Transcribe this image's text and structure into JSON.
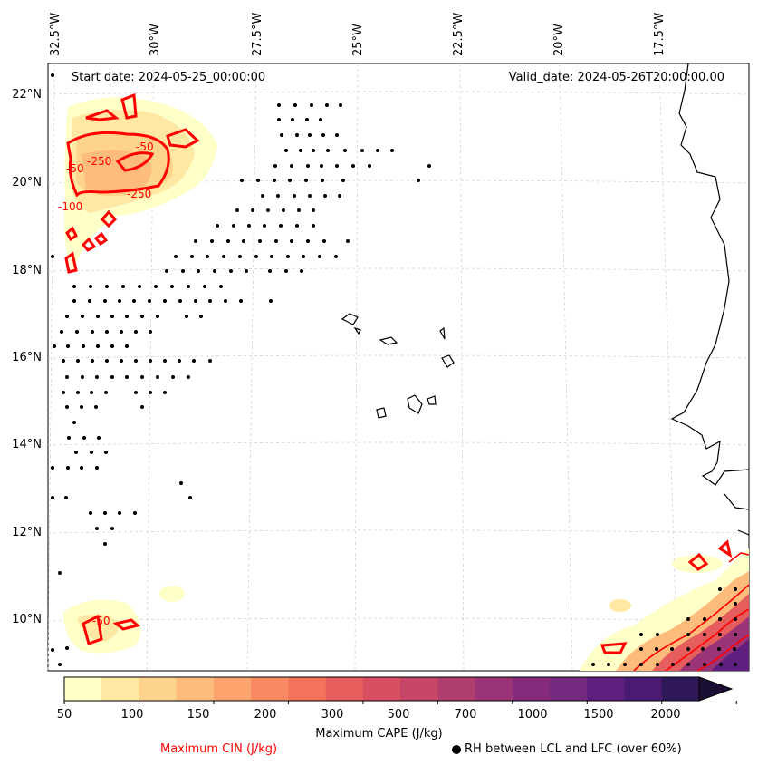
{
  "map": {
    "start_date": "Start date: 2024-05-25_00:00:00",
    "valid_date": "Valid_date: 2024-05-26T20:00:00.00",
    "longitude_labels": [
      "32.5°W",
      "30°W",
      "27.5°W",
      "25°W",
      "22.5°W",
      "20°W",
      "17.5°W"
    ],
    "latitude_labels": [
      "22°N",
      "20°N",
      "18°N",
      "16°N",
      "14°N",
      "12°N",
      "10°N"
    ],
    "cin_contour_labels": [
      "-250",
      "-50",
      "-100",
      "-50",
      "-250",
      "-50"
    ]
  },
  "colorbar": {
    "tick_labels": [
      "50",
      "100",
      "150",
      "200",
      "300",
      "500",
      "700",
      "1000",
      "1500",
      "2000"
    ],
    "colors": [
      "#ffffc8",
      "#fee8a4",
      "#fed48c",
      "#fdbc7c",
      "#fca36e",
      "#fa8a63",
      "#f3735c",
      "#e65d5d",
      "#d84f62",
      "#c54668",
      "#b03f6f",
      "#9b3476",
      "#862b7c",
      "#732a80",
      "#5e1f7f",
      "#491b72",
      "#2f1858",
      "#1b1034"
    ],
    "label": "Maximum CAPE (J/kg)"
  },
  "legend": {
    "cin_label": "Maximum CIN (J/kg)",
    "cin_color": "#ff0000",
    "rh_label": "RH between LCL and LFC (over 60%)",
    "rh_marker": "filled-dot"
  }
}
